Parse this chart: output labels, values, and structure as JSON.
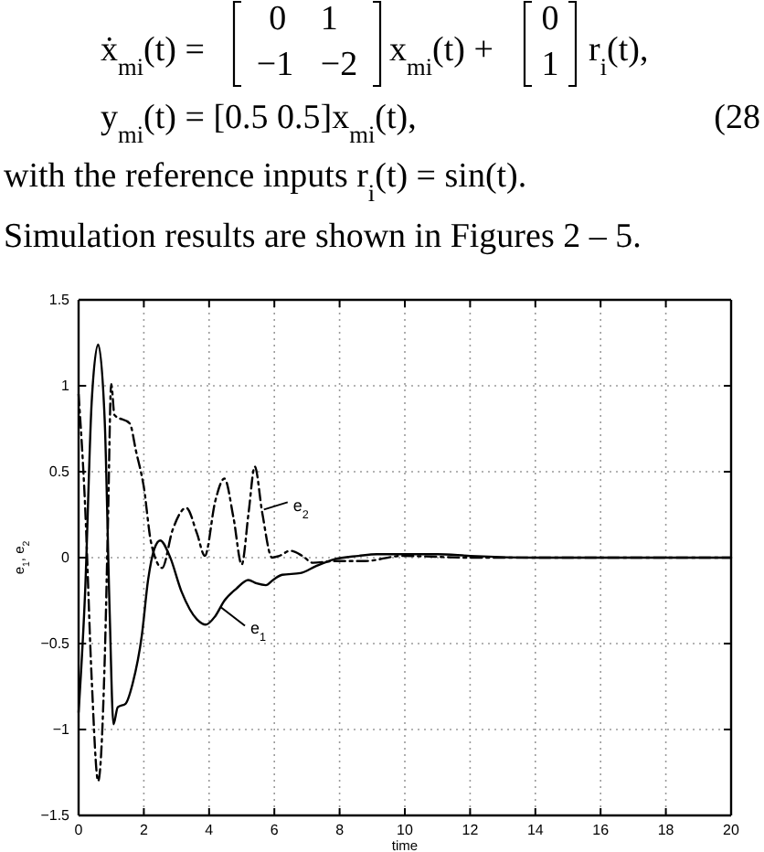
{
  "chart_data": {
    "type": "line",
    "xlabel": "time",
    "ylabel": "e$_{1}$, e$_{2}$",
    "xlim": [
      0,
      20
    ],
    "ylim": [
      -1.5,
      1.5
    ],
    "xticks": [
      0,
      2,
      4,
      6,
      8,
      10,
      12,
      14,
      16,
      18,
      20
    ],
    "yticks": [
      -1.5,
      -1,
      -0.5,
      0,
      0.5,
      1,
      1.5
    ],
    "grid": true,
    "series": [
      {
        "color": "#000000",
        "line_style": "solid",
        "x": [
          0,
          0.2,
          0.4,
          0.6,
          0.8,
          0.95,
          1.07,
          1.2,
          1.44,
          1.66,
          1.94,
          2.13,
          2.32,
          2.5,
          2.79,
          3.16,
          3.63,
          3.9,
          4.19,
          4.47,
          4.84,
          5.2,
          5.46,
          5.74,
          5.96,
          6.24,
          6.8,
          7.27,
          7.83,
          8.58,
          9.14,
          9.9,
          11,
          12,
          14,
          16,
          18,
          20
        ],
        "values": [
          -0.9,
          -0.2,
          0.9,
          1.24,
          0.8,
          -0.3,
          -0.97,
          -0.87,
          -0.85,
          -0.73,
          -0.45,
          -0.13,
          0.05,
          0.1,
          0.01,
          -0.2,
          -0.36,
          -0.39,
          -0.34,
          -0.25,
          -0.18,
          -0.13,
          -0.15,
          -0.16,
          -0.13,
          -0.1,
          -0.09,
          -0.05,
          -0.01,
          0.01,
          0.02,
          0.02,
          0.02,
          0.01,
          0,
          0,
          0,
          0
        ]
      },
      {
        "color": "#000000",
        "line_style": "dashed",
        "x": [
          0,
          0.2,
          0.4,
          0.6,
          0.8,
          0.9,
          1.0,
          1.1,
          1.57,
          1.76,
          2.0,
          2.22,
          2.56,
          2.88,
          3.3,
          3.63,
          3.87,
          4.19,
          4.47,
          4.75,
          5.0,
          5.21,
          5.4,
          5.63,
          5.93,
          6.15,
          6.49,
          6.86,
          7.18,
          7.83,
          8.77,
          9.9,
          12,
          14,
          16,
          18,
          20
        ],
        "values": [
          0.95,
          0.3,
          -0.7,
          -1.3,
          -0.6,
          0.2,
          1.01,
          0.83,
          0.78,
          0.62,
          0.41,
          0.09,
          -0.06,
          0.16,
          0.29,
          0.14,
          0.01,
          0.33,
          0.46,
          0.23,
          -0.04,
          0.26,
          0.53,
          0.26,
          0,
          0.01,
          0.04,
          0.01,
          -0.03,
          -0.02,
          -0.02,
          0.01,
          0,
          0,
          0,
          0,
          0
        ]
      }
    ],
    "annotations": [
      "ẋ$_{mi}$(t) =",
      "0 1",
      "−1 −2",
      "x$_{mi}$(t) +",
      "0",
      "1",
      "r$_{i}$(t),",
      "y$_{mi}$(t) = [0.5 0.5]x$_{mi}$(t),",
      "(28",
      "with the reference inputs r$_{i}$(t) = sin(t).",
      "Simulation results are shown in Figures 2 – 5.",
      {
        "text": "e$_{2}$",
        "x": 5.68,
        "y": 0.28
      },
      {
        "text": "e$_{1}$",
        "x": 4.37,
        "y": -0.29
      }
    ]
  }
}
